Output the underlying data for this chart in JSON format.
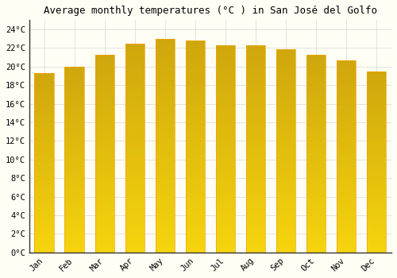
{
  "title": "Average monthly temperatures (°C ) in San José del Golfo",
  "months": [
    "Jan",
    "Feb",
    "Mar",
    "Apr",
    "May",
    "Jun",
    "Jul",
    "Aug",
    "Sep",
    "Oct",
    "Nov",
    "Dec"
  ],
  "temperatures": [
    19.3,
    20.0,
    21.3,
    22.5,
    23.0,
    22.8,
    22.3,
    22.3,
    21.9,
    21.3,
    20.7,
    19.5
  ],
  "bar_color_center": "#FFCC44",
  "bar_color_edge": "#F5A000",
  "background_color": "#FFFEF5",
  "grid_color": "#DDDDDD",
  "spine_color": "#333333",
  "ylim": [
    0,
    25
  ],
  "yticks": [
    0,
    2,
    4,
    6,
    8,
    10,
    12,
    14,
    16,
    18,
    20,
    22,
    24
  ],
  "title_fontsize": 9,
  "tick_fontsize": 7.5,
  "font_family": "monospace",
  "bar_width": 0.65
}
